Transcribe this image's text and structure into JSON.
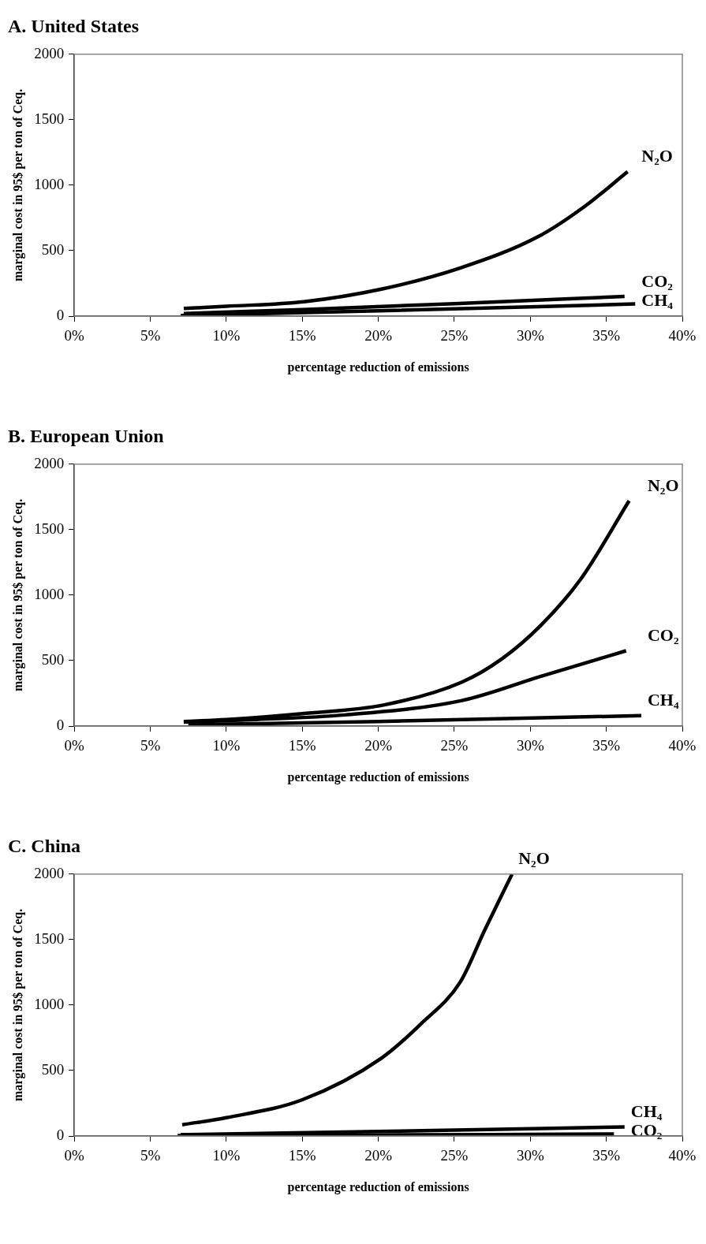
{
  "chart_data": [
    {
      "type": "line",
      "title": "A. United States",
      "xlabel": "percentage reduction of emissions",
      "ylabel": "marginal cost in 95$ per ton of Ceq.",
      "xlim": [
        0,
        40
      ],
      "xticks": [
        {
          "value": 0,
          "label": "0%"
        },
        {
          "value": 5,
          "label": "5%"
        },
        {
          "value": 10,
          "label": "10%"
        },
        {
          "value": 15,
          "label": "15%"
        },
        {
          "value": 20,
          "label": "20%"
        },
        {
          "value": 25,
          "label": "25%"
        },
        {
          "value": 30,
          "label": "30%"
        },
        {
          "value": 35,
          "label": "35%"
        },
        {
          "value": 40,
          "label": "40%"
        }
      ],
      "ylim": [
        0,
        2000
      ],
      "yticks": [
        0,
        500,
        1000,
        1500,
        2000
      ],
      "grid": false,
      "legend": false,
      "marker": "none",
      "line_style": "solid",
      "series": [
        {
          "name": "N₂O",
          "color": "#000000",
          "x": [
            7.2,
            10,
            15.1,
            20.2,
            25.4,
            30.5,
            33.6,
            36.4
          ],
          "values": [
            58,
            75,
            110,
            206,
            368,
            606,
            840,
            1103
          ]
        },
        {
          "name": "CO₂",
          "color": "#000000",
          "x": [
            7.2,
            15,
            25,
            36.2
          ],
          "values": [
            20,
            50,
            95,
            150
          ]
        },
        {
          "name": "CH₄",
          "color": "#000000",
          "x": [
            7,
            20,
            36.9
          ],
          "values": [
            5,
            40,
            93
          ]
        }
      ]
    },
    {
      "type": "line",
      "title": "B. European Union",
      "xlabel": "percentage reduction of emissions",
      "ylabel": "marginal cost in 95$ per ton of Ceq.",
      "xlim": [
        0,
        40
      ],
      "xticks": [
        {
          "value": 0,
          "label": "0%"
        },
        {
          "value": 5,
          "label": "5%"
        },
        {
          "value": 10,
          "label": "10%"
        },
        {
          "value": 15,
          "label": "15%"
        },
        {
          "value": 20,
          "label": "20%"
        },
        {
          "value": 25,
          "label": "25%"
        },
        {
          "value": 30,
          "label": "30%"
        },
        {
          "value": 35,
          "label": "35%"
        },
        {
          "value": 40,
          "label": "40%"
        }
      ],
      "ylim": [
        0,
        2000
      ],
      "yticks": [
        0,
        500,
        1000,
        1500,
        2000
      ],
      "grid": false,
      "legend": false,
      "marker": "none",
      "line_style": "solid",
      "series": [
        {
          "name": "N₂O",
          "color": "#000000",
          "x": [
            7.2,
            10,
            15,
            20.4,
            25.5,
            28.1,
            30.7,
            33.3,
            36.5
          ],
          "values": [
            35,
            50,
            95,
            162,
            336,
            511,
            770,
            1120,
            1720
          ]
        },
        {
          "name": "CO₂",
          "color": "#000000",
          "x": [
            7.2,
            12,
            17.8,
            25.5,
            30.7,
            36.3
          ],
          "values": [
            30,
            50,
            85,
            195,
            380,
            575
          ]
        },
        {
          "name": "CH₄",
          "color": "#000000",
          "x": [
            7.5,
            20,
            37.3
          ],
          "values": [
            10,
            35,
            80
          ]
        }
      ]
    },
    {
      "type": "line",
      "title": "C. China",
      "xlabel": "percentage reduction of emissions",
      "ylabel": "marginal cost in 95$ per ton of Ceq.",
      "xlim": [
        0,
        40
      ],
      "xticks": [
        {
          "value": 0,
          "label": "0%"
        },
        {
          "value": 5,
          "label": "5%"
        },
        {
          "value": 10,
          "label": "10%"
        },
        {
          "value": 15,
          "label": "15%"
        },
        {
          "value": 20,
          "label": "20%"
        },
        {
          "value": 25,
          "label": "25%"
        },
        {
          "value": 30,
          "label": "30%"
        },
        {
          "value": 35,
          "label": "35%"
        },
        {
          "value": 40,
          "label": "40%"
        }
      ],
      "ylim": [
        0,
        2000
      ],
      "yticks": [
        0,
        500,
        1000,
        1500,
        2000
      ],
      "grid": false,
      "legend": false,
      "marker": "none",
      "line_style": "solid",
      "series": [
        {
          "name": "N₂O",
          "color": "#000000",
          "x": [
            7.1,
            10,
            15,
            20.2,
            22.8,
            25.4,
            27,
            28.8
          ],
          "values": [
            86,
            140,
            277,
            594,
            856,
            1178,
            1573,
            2000
          ]
        },
        {
          "name": "CH₄",
          "color": "#000000",
          "x": [
            7,
            20,
            36.2
          ],
          "values": [
            10,
            35,
            69
          ]
        },
        {
          "name": "CO₂",
          "color": "#000000",
          "x": [
            6.8,
            20,
            35.5
          ],
          "values": [
            3,
            8,
            15
          ]
        }
      ]
    }
  ]
}
